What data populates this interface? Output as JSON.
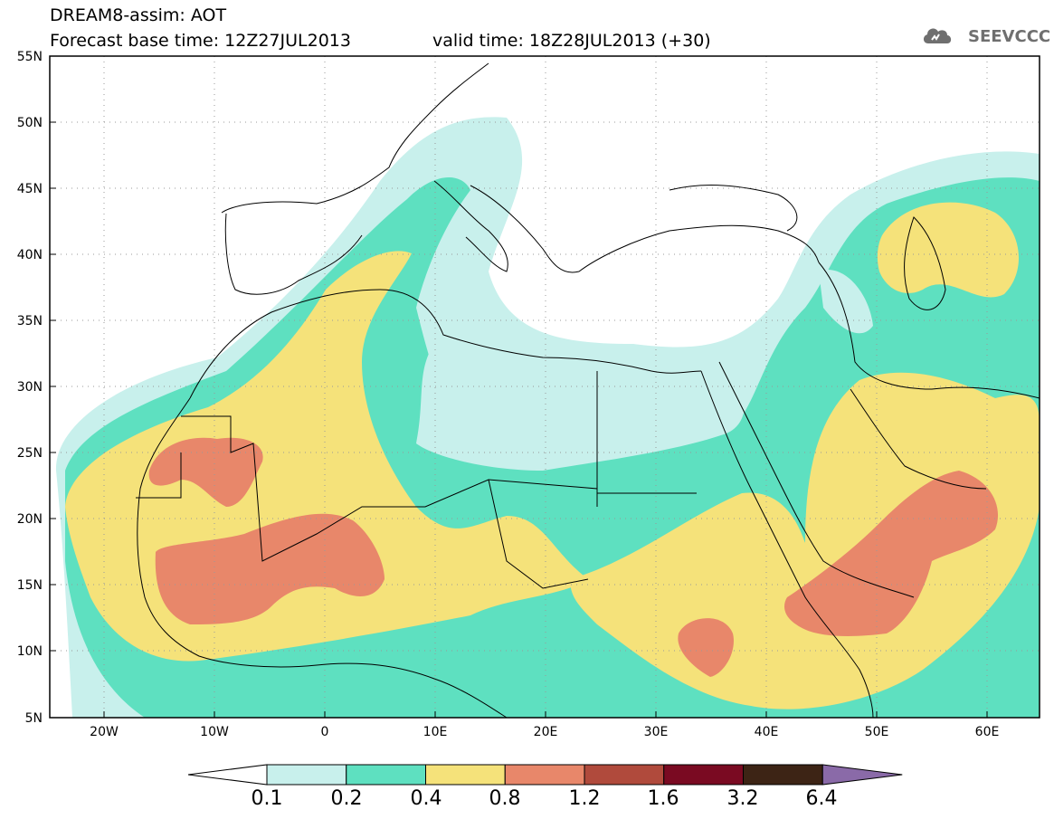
{
  "header": {
    "title": "DREAM8-assim: AOT",
    "forecast_base": "Forecast base time: 12Z27JUL2013",
    "valid_time": "valid time: 18Z28JUL2013 (+30)"
  },
  "logo": {
    "icon": "cloud-logo-icon",
    "text": "SEEVCCC"
  },
  "axes": {
    "x_ticks": [
      "20W",
      "10W",
      "0",
      "10E",
      "20E",
      "30E",
      "40E",
      "50E",
      "60E"
    ],
    "y_ticks": [
      "55N",
      "50N",
      "45N",
      "40N",
      "35N",
      "30N",
      "25N",
      "20N",
      "15N",
      "10N",
      "5N"
    ],
    "lon_range": [
      -25,
      65
    ],
    "lat_range": [
      5,
      55
    ]
  },
  "colorbar": {
    "labels": [
      "0.1",
      "0.2",
      "0.4",
      "0.8",
      "1.2",
      "1.6",
      "3.2",
      "6.4"
    ],
    "colors": [
      "#ffffff",
      "#c8f0ec",
      "#5ee0c0",
      "#f5e27a",
      "#e8876a",
      "#b04a3c",
      "#7a0a22",
      "#3d2415",
      "#8a6aa8"
    ]
  }
}
